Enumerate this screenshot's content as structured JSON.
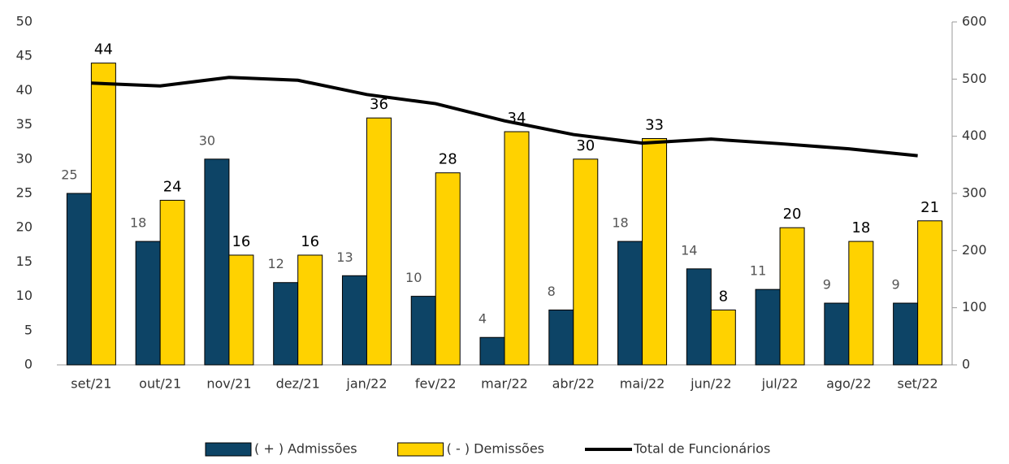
{
  "chart_data": {
    "type": "bar",
    "categories": [
      "set/21",
      "out/21",
      "nov/21",
      "dez/21",
      "jan/22",
      "fev/22",
      "mar/22",
      "abr/22",
      "mai/22",
      "jun/22",
      "jul/22",
      "ago/22",
      "set/22"
    ],
    "series": [
      {
        "name": "( + ) Admissões",
        "color": "#0d4466",
        "values": [
          25,
          18,
          30,
          12,
          13,
          10,
          4,
          8,
          18,
          14,
          11,
          9,
          9
        ]
      },
      {
        "name": "( - ) Demissões",
        "color": "#ffd200",
        "values": [
          44,
          24,
          16,
          16,
          36,
          28,
          34,
          30,
          33,
          8,
          20,
          18,
          21
        ]
      },
      {
        "name": "Total de Funcionários",
        "type": "line",
        "axis": "y2",
        "color": "#000000",
        "values": [
          493,
          488,
          503,
          498,
          473,
          457,
          427,
          403,
          388,
          395,
          387,
          378,
          366
        ]
      }
    ],
    "ylim": [
      0,
      50
    ],
    "yticks": [
      0,
      5,
      10,
      15,
      20,
      25,
      30,
      35,
      40,
      45,
      50
    ],
    "y2lim": [
      0,
      600
    ],
    "y2ticks": [
      0,
      100,
      200,
      300,
      400,
      500,
      600
    ],
    "legend": "bottom"
  }
}
